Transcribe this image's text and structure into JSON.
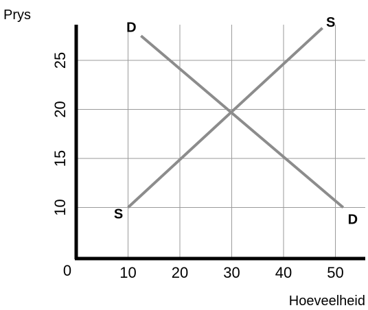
{
  "chart_data": {
    "type": "line",
    "xlabel": "Hoeveelheid",
    "ylabel": "Prys",
    "origin_label": "0",
    "xlim": [
      0,
      56
    ],
    "ylim": [
      4.5,
      29
    ],
    "x_ticks": [
      10,
      20,
      30,
      40,
      50
    ],
    "y_ticks": [
      10,
      15,
      20,
      25
    ],
    "grid": true,
    "legend": "none",
    "series": [
      {
        "name": "D",
        "color": "#8c8c8c",
        "points": [
          [
            12.5,
            27.5
          ],
          [
            51.5,
            10
          ]
        ],
        "labels": [
          "D",
          "D"
        ]
      },
      {
        "name": "S",
        "color": "#8c8c8c",
        "points": [
          [
            10,
            10
          ],
          [
            47.5,
            28.3
          ]
        ],
        "labels": [
          "S",
          "S"
        ]
      }
    ]
  }
}
